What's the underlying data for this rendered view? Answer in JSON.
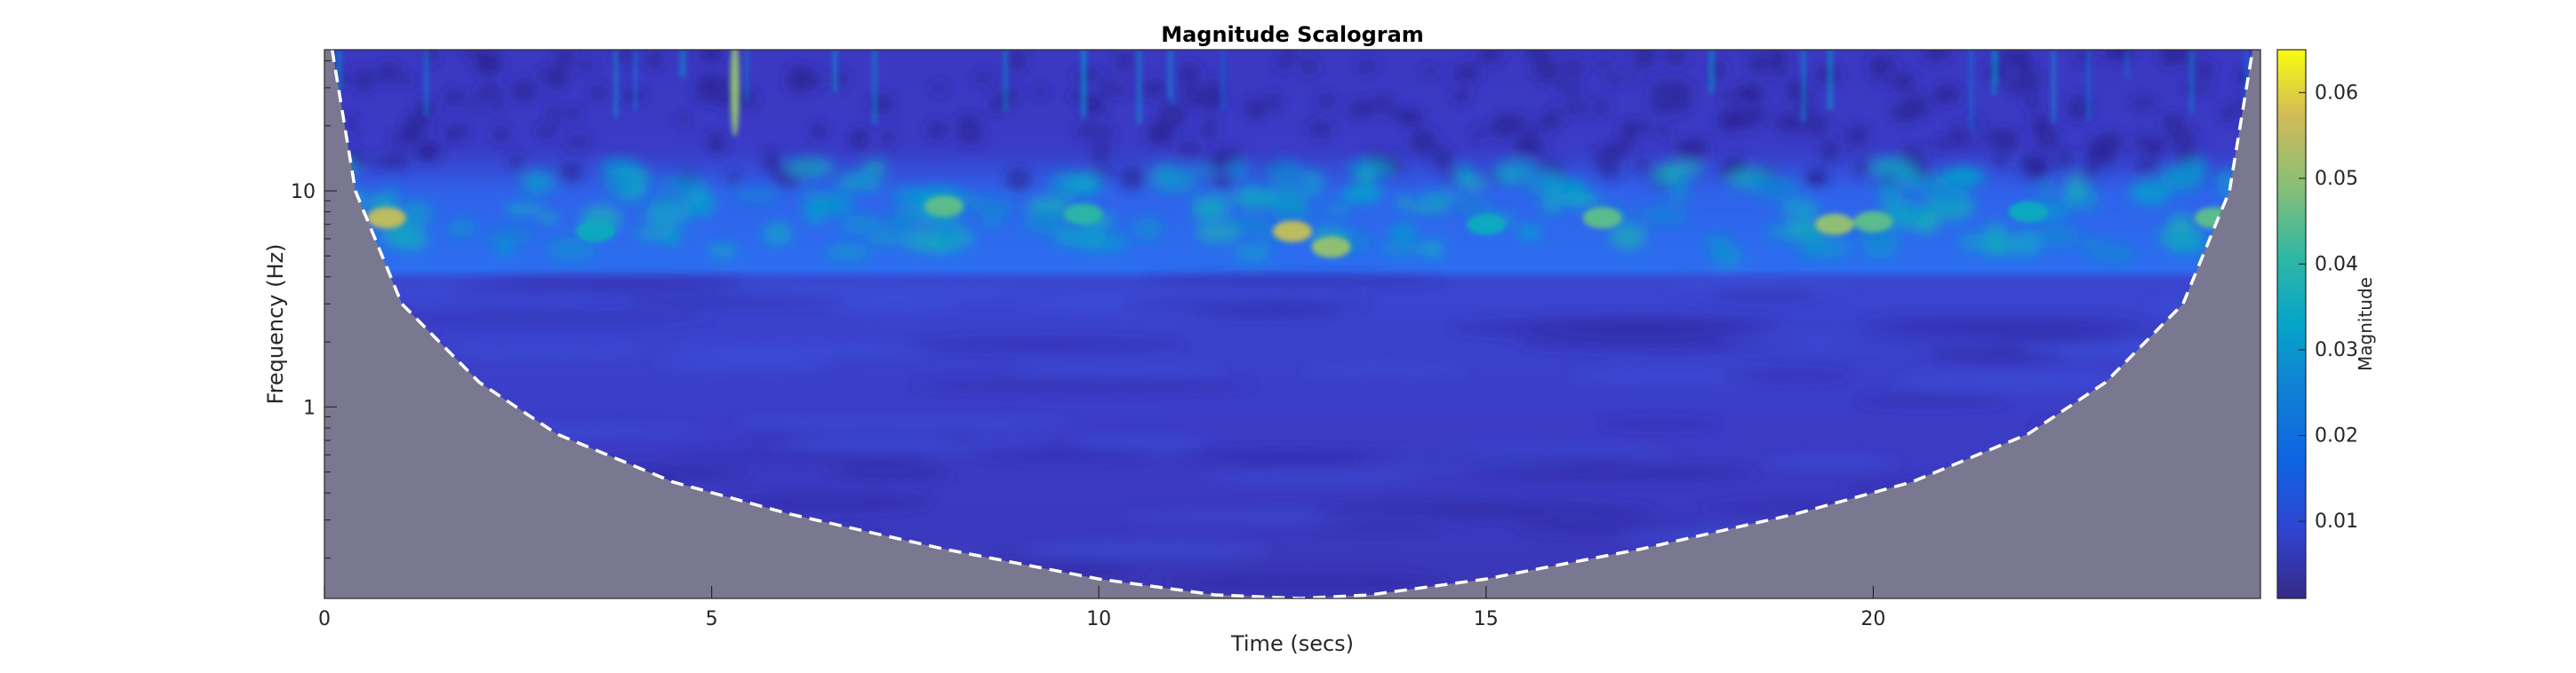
{
  "chart_data": {
    "type": "heatmap",
    "title": "Magnitude Scalogram",
    "xlabel": "Time (secs)",
    "ylabel": "Frequency (Hz)",
    "x_ticks": [
      0,
      5,
      10,
      15,
      20
    ],
    "y_ticks": [
      1,
      10
    ],
    "xlim": [
      0,
      25
    ],
    "ylim": [
      0.13,
      45
    ],
    "y_scale": "log",
    "colorbar": {
      "label": "Magnitude",
      "ticks": [
        0.01,
        0.02,
        0.03,
        0.04,
        0.05,
        0.06
      ],
      "range": [
        0.001,
        0.065
      ],
      "colormap": "parula"
    },
    "cone_of_influence": {
      "style": "white dashed",
      "x": [
        0.1,
        0.4,
        1.0,
        2.0,
        3.0,
        4.5,
        6.0,
        8.0,
        10.0,
        11.5,
        12.6,
        13.5,
        15.0,
        17.0,
        19.0,
        20.5,
        22.0,
        23.0,
        24.0,
        24.6,
        24.9
      ],
      "y": [
        45,
        10,
        3.0,
        1.3,
        0.75,
        0.45,
        0.32,
        0.22,
        0.16,
        0.135,
        0.13,
        0.135,
        0.16,
        0.22,
        0.32,
        0.45,
        0.75,
        1.3,
        3.0,
        10,
        45
      ]
    },
    "hotspots": [
      {
        "time": 0.8,
        "frequency": 7.5,
        "magnitude": 0.055
      },
      {
        "time": 5.3,
        "frequency": 30,
        "magnitude": 0.05
      },
      {
        "time": 12.5,
        "frequency": 6.5,
        "magnitude": 0.055
      },
      {
        "time": 13.0,
        "frequency": 5.5,
        "magnitude": 0.05
      },
      {
        "time": 8.0,
        "frequency": 8.5,
        "magnitude": 0.045
      },
      {
        "time": 16.5,
        "frequency": 7.5,
        "magnitude": 0.045
      },
      {
        "time": 19.5,
        "frequency": 7.0,
        "magnitude": 0.05
      },
      {
        "time": 20.0,
        "frequency": 7.2,
        "magnitude": 0.045
      },
      {
        "time": 24.4,
        "frequency": 7.5,
        "magnitude": 0.045
      },
      {
        "time": 9.8,
        "frequency": 7.8,
        "magnitude": 0.04
      },
      {
        "time": 3.5,
        "frequency": 6.5,
        "magnitude": 0.035
      },
      {
        "time": 15.0,
        "frequency": 7.0,
        "magnitude": 0.035
      },
      {
        "time": 22.0,
        "frequency": 8.0,
        "magnitude": 0.035
      }
    ],
    "colors": {
      "cone_fill": "#7a7890",
      "cone_line": "#ffffff"
    }
  }
}
